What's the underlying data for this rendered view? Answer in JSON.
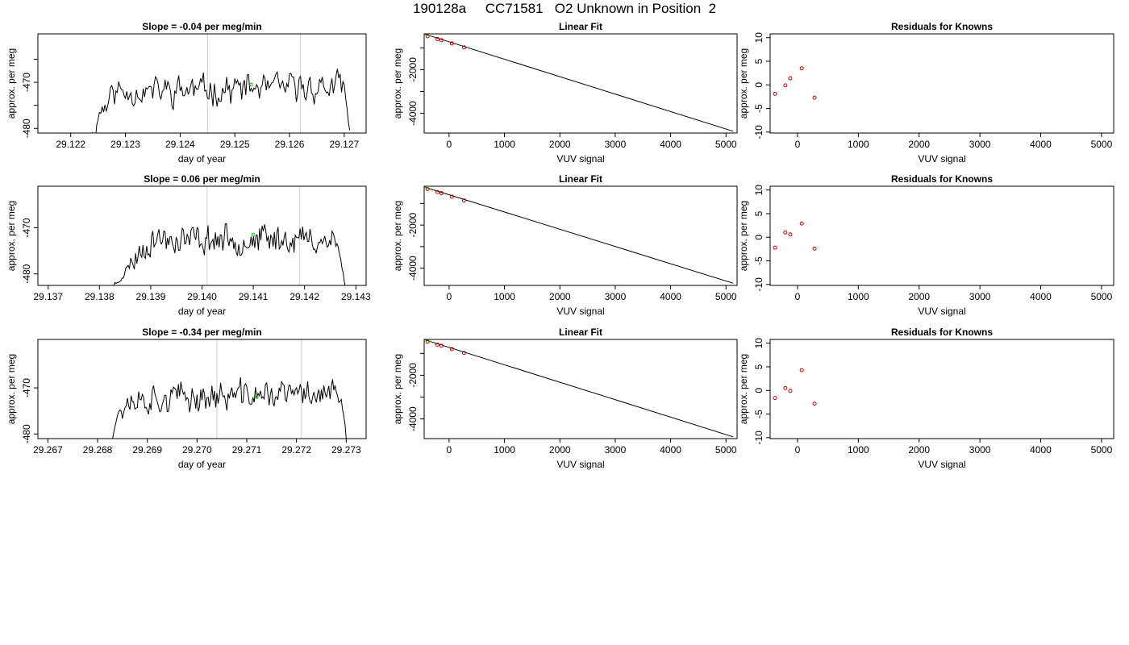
{
  "page": {
    "title": "190128a     CC71581   O2 Unknown in Position  2"
  },
  "colors": {
    "trace": "#000000",
    "marker_unknown": "#00cc00",
    "residual_points": "#cc0000",
    "vertical_lines": "#cccccc"
  },
  "chart_data": [
    {
      "type": "line",
      "title": "Slope =  -0.04  per meg/min",
      "xlabel": "day of year",
      "ylabel": "approx. per meg",
      "xlim": [
        29.1214,
        29.1274
      ],
      "ylim": [
        -481,
        -459.5
      ],
      "xticks": [
        29.122,
        29.123,
        29.124,
        29.125,
        29.126,
        29.127
      ],
      "xtick_labels": [
        "29.122",
        "29.123",
        "29.124",
        "29.125",
        "29.126",
        "29.127"
      ],
      "yticks": [
        -480,
        -475,
        -470,
        -465
      ],
      "ytick_labels": [
        "-480",
        "",
        "-470",
        ""
      ],
      "vlines": [
        29.1245,
        29.1262
      ],
      "series_start": 29.1224,
      "series_end": 29.1271,
      "marker": {
        "x": 29.1253,
        "y": -470.5
      },
      "trace_profile": [
        [
          29.12235,
          -481
        ],
        [
          29.12245,
          -481.5
        ],
        [
          29.1225,
          -477
        ],
        [
          29.1227,
          -473.5
        ],
        [
          29.1228,
          -472
        ],
        [
          29.127,
          -471
        ],
        [
          29.1271,
          -481
        ]
      ],
      "trace_seed": 11
    },
    {
      "type": "line",
      "title": "Slope =  0.06  per meg/min",
      "xlabel": "day of year",
      "ylabel": "approx. per meg",
      "xlim": [
        29.1368,
        29.1432
      ],
      "ylim": [
        -482.5,
        -461
      ],
      "xticks": [
        29.137,
        29.138,
        29.139,
        29.14,
        29.141,
        29.142,
        29.143
      ],
      "xtick_labels": [
        "29.137",
        "29.138",
        "29.139",
        "29.140",
        "29.141",
        "29.142",
        "29.143"
      ],
      "yticks": [
        -480,
        -470
      ],
      "ytick_labels": [
        "-480",
        "-470"
      ],
      "vlines": [
        29.1401,
        29.1419
      ],
      "series_start": 29.1383,
      "series_end": 29.1428,
      "marker": {
        "x": 29.141,
        "y": -471.5
      },
      "trace_profile": [
        [
          29.13825,
          -483
        ],
        [
          29.1384,
          -481
        ],
        [
          29.1386,
          -478
        ],
        [
          29.1388,
          -475
        ],
        [
          29.139,
          -472.5
        ],
        [
          29.1426,
          -472.5
        ],
        [
          29.1427,
          -477
        ],
        [
          29.1428,
          -483
        ]
      ],
      "trace_seed": 23
    },
    {
      "type": "line",
      "title": "Slope =  -0.34  per meg/min",
      "xlabel": "day of year",
      "ylabel": "approx. per meg",
      "xlim": [
        29.2668,
        29.2734
      ],
      "ylim": [
        -481,
        -459.5
      ],
      "xticks": [
        29.267,
        29.268,
        29.269,
        29.27,
        29.271,
        29.272,
        29.273
      ],
      "xtick_labels": [
        "29.267",
        "29.268",
        "29.269",
        "29.270",
        "29.271",
        "29.272",
        "29.273"
      ],
      "yticks": [
        -480,
        -470
      ],
      "ytick_labels": [
        "-480",
        "-470"
      ],
      "vlines": [
        29.2704,
        29.2721
      ],
      "series_start": 29.2682,
      "series_end": 29.273,
      "marker": {
        "x": 29.2712,
        "y": -472
      },
      "trace_profile": [
        [
          29.26825,
          -481
        ],
        [
          29.2683,
          -480
        ],
        [
          29.2684,
          -476
        ],
        [
          29.2686,
          -472.5
        ],
        [
          29.2728,
          -471
        ],
        [
          29.2729,
          -473
        ],
        [
          29.273,
          -481
        ]
      ],
      "trace_seed": 37
    },
    {
      "type": "line",
      "title": "Linear Fit",
      "xlabel": "VUV signal",
      "ylabel": "approx. per meg",
      "xlim": [
        -450,
        5200
      ],
      "ylim": [
        -4900,
        -360
      ],
      "xticks": [
        0,
        1000,
        2000,
        3000,
        4000,
        5000
      ],
      "xtick_labels": [
        "0",
        "1000",
        "2000",
        "3000",
        "4000",
        "5000"
      ],
      "yticks": [
        -4000,
        -3000,
        -2000,
        -1000
      ],
      "ytick_labels": [
        "-4000",
        "",
        "-2000",
        ""
      ],
      "fit_line": [
        [
          -430,
          -380
        ],
        [
          5130,
          -4820
        ]
      ],
      "points": [
        [
          -390,
          -470
        ],
        [
          -210,
          -600
        ],
        [
          -140,
          -650
        ],
        [
          50,
          -800
        ],
        [
          270,
          -980
        ]
      ],
      "point_color": "#cc0000",
      "green_segment": [
        [
          -470,
          -340
        ],
        [
          -330,
          -460
        ]
      ]
    },
    {
      "type": "line",
      "title": "Linear Fit",
      "xlabel": "VUV signal",
      "ylabel": "approx. per meg",
      "xlim": [
        -450,
        5200
      ],
      "ylim": [
        -4800,
        -200
      ],
      "xticks": [
        0,
        1000,
        2000,
        3000,
        4000,
        5000
      ],
      "xtick_labels": [
        "0",
        "1000",
        "2000",
        "3000",
        "4000",
        "5000"
      ],
      "yticks": [
        -4000,
        -3000,
        -2000,
        -1000
      ],
      "ytick_labels": [
        "-4000",
        "",
        "-2000",
        ""
      ],
      "fit_line": [
        [
          -430,
          -250
        ],
        [
          5130,
          -4700
        ]
      ],
      "points": [
        [
          -390,
          -330
        ],
        [
          -210,
          -470
        ],
        [
          -140,
          -520
        ],
        [
          50,
          -680
        ],
        [
          270,
          -860
        ]
      ],
      "point_color": "#cc0000",
      "green_segment": [
        [
          -470,
          -210
        ],
        [
          -330,
          -330
        ]
      ]
    },
    {
      "type": "line",
      "title": "Linear Fit",
      "xlabel": "VUV signal",
      "ylabel": "approx. per meg",
      "xlim": [
        -450,
        5200
      ],
      "ylim": [
        -4900,
        -360
      ],
      "xticks": [
        0,
        1000,
        2000,
        3000,
        4000,
        5000
      ],
      "xtick_labels": [
        "0",
        "1000",
        "2000",
        "3000",
        "4000",
        "5000"
      ],
      "yticks": [
        -4000,
        -3000,
        -2000,
        -1000
      ],
      "ytick_labels": [
        "-4000",
        "",
        "-2000",
        ""
      ],
      "fit_line": [
        [
          -430,
          -380
        ],
        [
          5130,
          -4820
        ]
      ],
      "points": [
        [
          -390,
          -470
        ],
        [
          -210,
          -600
        ],
        [
          -140,
          -650
        ],
        [
          50,
          -800
        ],
        [
          270,
          -980
        ]
      ],
      "point_color": "#cc0000",
      "green_segment": [
        [
          -470,
          -340
        ],
        [
          -330,
          -460
        ]
      ]
    },
    {
      "type": "scatter",
      "title": "Residuals for Knowns",
      "xlabel": "VUV signal",
      "ylabel": "approx. per meg",
      "xlim": [
        -450,
        5200
      ],
      "ylim": [
        -10.2,
        10.8
      ],
      "xticks": [
        0,
        1000,
        2000,
        3000,
        4000,
        5000
      ],
      "xtick_labels": [
        "0",
        "1000",
        "2000",
        "3000",
        "4000",
        "5000"
      ],
      "yticks": [
        -10,
        -5,
        0,
        5,
        10
      ],
      "ytick_labels": [
        "-10",
        "-5",
        "0",
        "5",
        "10"
      ],
      "points": [
        [
          -370,
          -1.9
        ],
        [
          -200,
          -0.1
        ],
        [
          -120,
          1.4
        ],
        [
          70,
          3.5
        ],
        [
          280,
          -2.7
        ]
      ],
      "point_color": "#cc0000"
    },
    {
      "type": "scatter",
      "title": "Residuals for Knowns",
      "xlabel": "VUV signal",
      "ylabel": "approx. per meg",
      "xlim": [
        -450,
        5200
      ],
      "ylim": [
        -10.2,
        10.8
      ],
      "xticks": [
        0,
        1000,
        2000,
        3000,
        4000,
        5000
      ],
      "xtick_labels": [
        "0",
        "1000",
        "2000",
        "3000",
        "4000",
        "5000"
      ],
      "yticks": [
        -10,
        -5,
        0,
        5,
        10
      ],
      "ytick_labels": [
        "-10",
        "-5",
        "0",
        "5",
        "10"
      ],
      "points": [
        [
          -370,
          -2.2
        ],
        [
          -200,
          1.0
        ],
        [
          -120,
          0.6
        ],
        [
          70,
          2.9
        ],
        [
          280,
          -2.4
        ]
      ],
      "point_color": "#cc0000"
    },
    {
      "type": "scatter",
      "title": "Residuals for Knowns",
      "xlabel": "VUV signal",
      "ylabel": "approx. per meg",
      "xlim": [
        -450,
        5200
      ],
      "ylim": [
        -10.2,
        10.8
      ],
      "xticks": [
        0,
        1000,
        2000,
        3000,
        4000,
        5000
      ],
      "xtick_labels": [
        "0",
        "1000",
        "2000",
        "3000",
        "4000",
        "5000"
      ],
      "yticks": [
        -10,
        -5,
        0,
        5,
        10
      ],
      "ytick_labels": [
        "-10",
        "-5",
        "0",
        "5",
        "10"
      ],
      "points": [
        [
          -370,
          -1.6
        ],
        [
          -200,
          0.5
        ],
        [
          -120,
          -0.1
        ],
        [
          70,
          4.3
        ],
        [
          280,
          -2.8
        ]
      ],
      "point_color": "#cc0000"
    }
  ]
}
